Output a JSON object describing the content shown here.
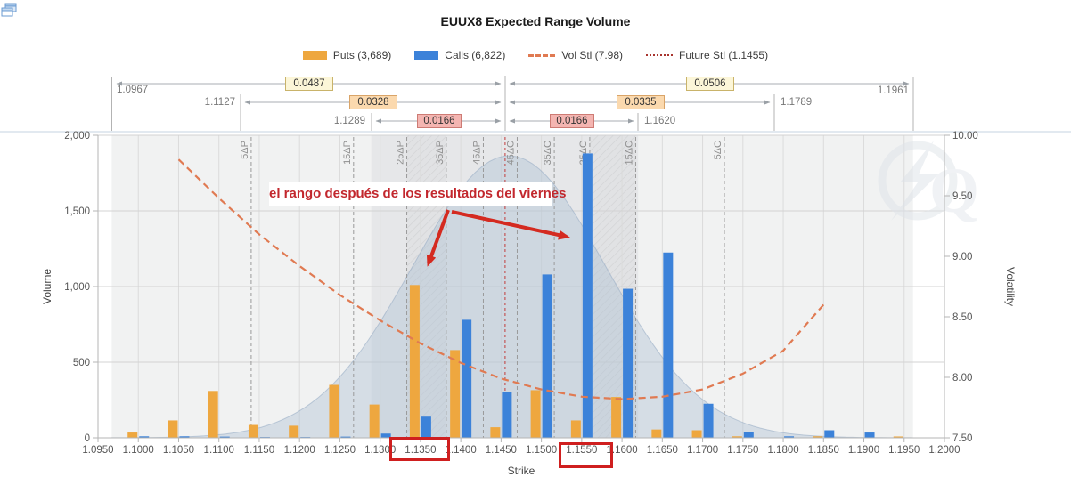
{
  "title": "EUUX8 Expected Range Volume",
  "window": {
    "corner_icon": "cascade-windows"
  },
  "legend": [
    {
      "label": "Puts (3,689)",
      "symbol": "swatch",
      "color": "#eea73f"
    },
    {
      "label": "Calls (6,822)",
      "symbol": "swatch",
      "color": "#3c82d9"
    },
    {
      "label": "Vol Stl (7.98)",
      "symbol": "dashed-line",
      "color": "#e07a52"
    },
    {
      "label": "Future Stl (1.1455)",
      "symbol": "dotted-line",
      "color": "#a8342e"
    }
  ],
  "range_diagram": {
    "left": [
      {
        "strike": "1.0967",
        "value": "0.0487",
        "color": "#fcf6d8"
      },
      {
        "strike": "1.1127",
        "value": "0.0328",
        "color": "#fbd9ae"
      },
      {
        "strike": "1.1289",
        "value": "0.0166",
        "color": "#f4b5b1"
      }
    ],
    "right": [
      {
        "strike": "1.1961",
        "value": "0.0506",
        "color": "#fcf6d8"
      },
      {
        "strike": "1.1789",
        "value": "0.0335",
        "color": "#fbd9ae"
      },
      {
        "strike": "1.1620",
        "value": "0.0166",
        "color": "#f4b5b1"
      }
    ]
  },
  "annotation": {
    "text": "el rango después de los resultados del viernes",
    "color": "#c2272d"
  },
  "highlighted_strikes": [
    "1.1350",
    "1.1550"
  ],
  "watermark_letter": "Q",
  "chart_data": {
    "type": "bar",
    "title": "EUUX8 Expected Range Volume",
    "xlabel": "Strike",
    "ylabel_left": "Volume",
    "ylabel_right": "Volatility",
    "x_range": [
      1.095,
      1.2
    ],
    "ylim_left": [
      0,
      2000
    ],
    "ylim_right": [
      7.5,
      10.0
    ],
    "grid": true,
    "legend_position": "top",
    "x_ticks": [
      {
        "value": 1.095,
        "label": "1.0950"
      },
      {
        "value": 1.1,
        "label": "1.1000"
      },
      {
        "value": 1.105,
        "label": "1.1050"
      },
      {
        "value": 1.11,
        "label": "1.1100"
      },
      {
        "value": 1.115,
        "label": "1.1150"
      },
      {
        "value": 1.12,
        "label": "1.1200"
      },
      {
        "value": 1.125,
        "label": "1.1250"
      },
      {
        "value": 1.13,
        "label": "1.1300"
      },
      {
        "value": 1.135,
        "label": "1.1350"
      },
      {
        "value": 1.14,
        "label": "1.1400"
      },
      {
        "value": 1.145,
        "label": "1.1450"
      },
      {
        "value": 1.15,
        "label": "1.1500"
      },
      {
        "value": 1.155,
        "label": "1.1550"
      },
      {
        "value": 1.16,
        "label": "1.1600"
      },
      {
        "value": 1.165,
        "label": "1.1650"
      },
      {
        "value": 1.17,
        "label": "1.1700"
      },
      {
        "value": 1.175,
        "label": "1.1750"
      },
      {
        "value": 1.18,
        "label": "1.1800"
      },
      {
        "value": 1.185,
        "label": "1.1850"
      },
      {
        "value": 1.19,
        "label": "1.1900"
      },
      {
        "value": 1.195,
        "label": "1.1950"
      },
      {
        "value": 1.2,
        "label": "1.2000"
      }
    ],
    "y_ticks_left": [
      {
        "value": 0,
        "label": "0"
      },
      {
        "value": 500,
        "label": "500"
      },
      {
        "value": 1000,
        "label": "1,000"
      },
      {
        "value": 1500,
        "label": "1,500"
      },
      {
        "value": 2000,
        "label": "2,000"
      }
    ],
    "y_ticks_right": [
      {
        "value": 7.5,
        "label": "7.50"
      },
      {
        "value": 8.0,
        "label": "8.00"
      },
      {
        "value": 8.5,
        "label": "8.50"
      },
      {
        "value": 9.0,
        "label": "9.00"
      },
      {
        "value": 9.5,
        "label": "9.50"
      },
      {
        "value": 10.0,
        "label": "10.00"
      }
    ],
    "strikes": [
      1.1,
      1.105,
      1.11,
      1.115,
      1.12,
      1.125,
      1.13,
      1.135,
      1.14,
      1.145,
      1.15,
      1.155,
      1.16,
      1.165,
      1.17,
      1.175,
      1.18,
      1.185,
      1.19,
      1.195
    ],
    "series": [
      {
        "name": "Puts",
        "color": "#eea73f",
        "total": 3689,
        "values": [
          35,
          115,
          310,
          85,
          80,
          350,
          220,
          1010,
          580,
          70,
          315,
          115,
          270,
          55,
          50,
          10,
          0,
          10,
          0,
          9
        ]
      },
      {
        "name": "Calls",
        "color": "#3c82d9",
        "total": 6822,
        "values": [
          10,
          10,
          8,
          5,
          5,
          8,
          28,
          140,
          780,
          300,
          1080,
          1880,
          985,
          1225,
          225,
          38,
          10,
          50,
          35,
          0
        ]
      }
    ],
    "vol_smile": {
      "name": "Vol Stl",
      "settle": 7.98,
      "color": "#e07a52",
      "points": [
        [
          1.105,
          9.8
        ],
        [
          1.11,
          9.48
        ],
        [
          1.115,
          9.18
        ],
        [
          1.12,
          8.92
        ],
        [
          1.125,
          8.68
        ],
        [
          1.13,
          8.47
        ],
        [
          1.135,
          8.28
        ],
        [
          1.14,
          8.12
        ],
        [
          1.145,
          7.99
        ],
        [
          1.15,
          7.9
        ],
        [
          1.155,
          7.84
        ],
        [
          1.16,
          7.82
        ],
        [
          1.165,
          7.84
        ],
        [
          1.17,
          7.9
        ],
        [
          1.175,
          8.03
        ],
        [
          1.18,
          8.22
        ],
        [
          1.185,
          8.6
        ]
      ]
    },
    "future_stl": 1.1455,
    "delta_lines": [
      {
        "label": "5ΔP",
        "strike": 1.114
      },
      {
        "label": "15ΔP",
        "strike": 1.1267
      },
      {
        "label": "25ΔP",
        "strike": 1.1333
      },
      {
        "label": "35ΔP",
        "strike": 1.1382
      },
      {
        "label": "45ΔP",
        "strike": 1.1428
      },
      {
        "label": "45ΔC",
        "strike": 1.147
      },
      {
        "label": "35ΔC",
        "strike": 1.1516
      },
      {
        "label": "25ΔC",
        "strike": 1.156
      },
      {
        "label": "15ΔC",
        "strike": 1.1617
      },
      {
        "label": "5ΔC",
        "strike": 1.1727
      }
    ],
    "expected_range_bell": {
      "center": 1.146,
      "sigma": 0.012,
      "peak": 1865
    },
    "bands": [
      {
        "from": 1.0967,
        "to": 1.1961,
        "color": "#f1f2f2"
      },
      {
        "from": 1.1289,
        "to": 1.162,
        "color": "#e6e7e9"
      }
    ],
    "hatch_zones": [
      [
        1.1333,
        1.1382
      ],
      [
        1.156,
        1.1617
      ]
    ]
  }
}
